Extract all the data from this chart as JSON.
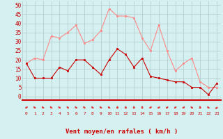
{
  "x": [
    0,
    1,
    2,
    3,
    4,
    5,
    6,
    7,
    8,
    9,
    10,
    11,
    12,
    13,
    14,
    15,
    16,
    17,
    18,
    19,
    20,
    21,
    22,
    23
  ],
  "wind_avg": [
    18,
    10,
    10,
    10,
    16,
    14,
    20,
    20,
    16,
    12,
    20,
    26,
    23,
    16,
    21,
    11,
    10,
    9,
    8,
    8,
    5,
    5,
    1,
    7
  ],
  "wind_gust": [
    18,
    21,
    20,
    33,
    32,
    35,
    39,
    29,
    31,
    36,
    48,
    44,
    44,
    43,
    32,
    25,
    39,
    25,
    14,
    18,
    21,
    8,
    5,
    5
  ],
  "bg_color": "#d4f0f0",
  "grid_color": "#b0c8c8",
  "line_avg_color": "#cc0000",
  "line_gust_color": "#ff8888",
  "xlabel": "Vent moyen/en rafales ( km/h )",
  "xlabel_color": "#cc0000",
  "ylabel_ticks": [
    0,
    5,
    10,
    15,
    20,
    25,
    30,
    35,
    40,
    45,
    50
  ],
  "ytick_labels": [
    "0",
    "5",
    "10",
    "15",
    "20",
    "25",
    "30",
    "35",
    "40",
    "45",
    "50"
  ],
  "ylim": [
    -2,
    52
  ],
  "xlim": [
    -0.5,
    23.5
  ],
  "arrow_angles": [
    315,
    45,
    45,
    45,
    45,
    45,
    45,
    45,
    45,
    45,
    45,
    0,
    0,
    0,
    0,
    315,
    315,
    315,
    315,
    315,
    45,
    0,
    45,
    135
  ],
  "tick_color": "#cc0000",
  "spine_bottom_color": "#cc0000"
}
